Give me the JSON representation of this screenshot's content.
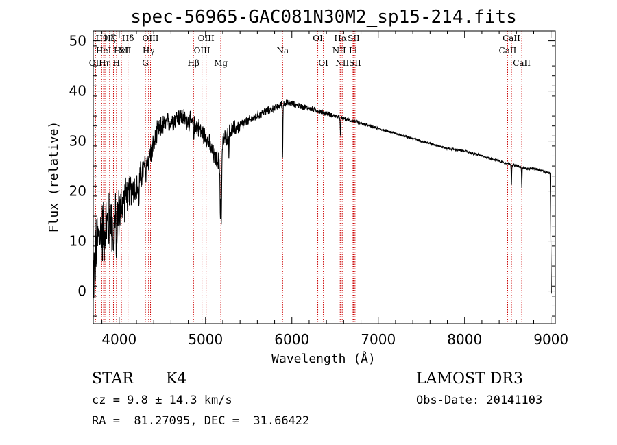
{
  "chart_data": {
    "type": "line",
    "title": "spec-56965-GAC081N30M2_sp15-214.fits",
    "xlabel": "Wavelength (Å)",
    "ylabel": "Flux (relative)",
    "xlim": [
      3700,
      9050
    ],
    "ylim": [
      -6.5,
      52
    ],
    "xticks": [
      4000,
      5000,
      6000,
      7000,
      8000,
      9000
    ],
    "yticks": [
      0,
      10,
      20,
      30,
      40,
      50
    ],
    "continuum": {
      "x": [
        3700,
        3750,
        3800,
        3850,
        3900,
        3950,
        4000,
        4050,
        4100,
        4150,
        4200,
        4250,
        4300,
        4350,
        4400,
        4450,
        4500,
        4600,
        4700,
        4800,
        4900,
        5000,
        5100,
        5150,
        5180,
        5200,
        5300,
        5400,
        5500,
        5600,
        5700,
        5800,
        5900,
        6000,
        6100,
        6200,
        6300,
        6400,
        6500,
        6600,
        6700,
        6800,
        6900,
        7000,
        7200,
        7400,
        7600,
        7800,
        8000,
        8200,
        8400,
        8500,
        8600,
        8700,
        8800,
        8900,
        8990,
        9005
      ],
      "y": [
        3,
        10,
        12,
        13,
        14,
        13,
        16,
        18,
        20,
        21,
        20,
        23,
        25,
        27,
        29,
        32,
        33,
        34,
        35,
        34,
        33,
        31,
        27,
        26,
        21,
        30,
        32,
        33,
        34,
        35,
        36,
        36.5,
        37.5,
        37.5,
        37,
        36.5,
        36,
        35.5,
        35,
        34.5,
        34,
        33.5,
        33,
        32.5,
        31.5,
        30.5,
        29.5,
        28.5,
        28,
        27,
        26,
        25.5,
        25,
        24.5,
        24.5,
        24,
        23.5,
        -0.5
      ]
    },
    "noise": {
      "x": [
        3700,
        3950,
        4100,
        4400,
        4500,
        5300,
        5500,
        5900,
        6200,
        6700,
        7000,
        9000
      ],
      "amp": [
        12,
        10,
        6,
        4,
        3.5,
        3,
        1.6,
        1.2,
        1.0,
        0.6,
        0.4,
        0.4
      ]
    },
    "absorption": [
      {
        "x": 3934,
        "depth": 8
      },
      {
        "x": 3969,
        "depth": 7
      },
      {
        "x": 4102,
        "depth": 4
      },
      {
        "x": 4227,
        "depth": 4
      },
      {
        "x": 4307,
        "depth": 3
      },
      {
        "x": 4861,
        "depth": 3
      },
      {
        "x": 5172,
        "depth": 8
      },
      {
        "x": 5184,
        "depth": 8
      },
      {
        "x": 5270,
        "depth": 3
      },
      {
        "x": 5893,
        "depth": 11
      },
      {
        "x": 6563,
        "depth": 4
      },
      {
        "x": 8542,
        "depth": 4
      },
      {
        "x": 8662,
        "depth": 4
      }
    ],
    "spectral_lines": [
      {
        "x": 3727,
        "label": "OII",
        "row": 2
      },
      {
        "x": 3798,
        "label": "Hθ",
        "row": 0
      },
      {
        "x": 3820,
        "label": "HeI",
        "row": 1
      },
      {
        "x": 3835,
        "label": "Hη",
        "row": 2
      },
      {
        "x": 3889,
        "label": "Hζ",
        "row": 0
      },
      {
        "x": 3934,
        "label": "K",
        "row": 0
      },
      {
        "x": 3969,
        "label": "H",
        "row": 2
      },
      {
        "x": 4026,
        "label": "HeI",
        "row": 1
      },
      {
        "x": 4069,
        "label": "SII",
        "row": 1
      },
      {
        "x": 4102,
        "label": "Hδ",
        "row": 0
      },
      {
        "x": 4304,
        "label": "G",
        "row": 2
      },
      {
        "x": 4341,
        "label": "Hγ",
        "row": 1
      },
      {
        "x": 4363,
        "label": "OIII",
        "row": 0
      },
      {
        "x": 4861,
        "label": "Hβ",
        "row": 2
      },
      {
        "x": 4959,
        "label": "OIII",
        "row": 1
      },
      {
        "x": 5007,
        "label": "OIII",
        "row": 0
      },
      {
        "x": 5177,
        "label": "Mg",
        "row": 2
      },
      {
        "x": 5893,
        "label": "Na",
        "row": 1
      },
      {
        "x": 6300,
        "label": "OI",
        "row": 0
      },
      {
        "x": 6364,
        "label": "OI",
        "row": 2
      },
      {
        "x": 6548,
        "label": "NII",
        "row": 1
      },
      {
        "x": 6563,
        "label": "Hα",
        "row": 0
      },
      {
        "x": 6583,
        "label": "NII",
        "row": 2
      },
      {
        "x": 6708,
        "label": "Li",
        "row": 1
      },
      {
        "x": 6716,
        "label": "SII",
        "row": 0
      },
      {
        "x": 6731,
        "label": "SII",
        "row": 2
      },
      {
        "x": 8498,
        "label": "CaII",
        "row": 1
      },
      {
        "x": 8542,
        "label": "CaII",
        "row": 0
      },
      {
        "x": 8662,
        "label": "CaII",
        "row": 2
      }
    ],
    "colors": {
      "spectrum": "#000000",
      "lines": "#cc0000",
      "axes": "#000000"
    }
  },
  "info": {
    "object_class": "STAR",
    "subclass": "K4",
    "survey": "LAMOST DR3",
    "redshift": "cz = 9.8 ± 14.3 km/s",
    "obs_date": "Obs-Date: 20141103",
    "coords": "RA =  81.27095, DEC =  31.66422"
  }
}
